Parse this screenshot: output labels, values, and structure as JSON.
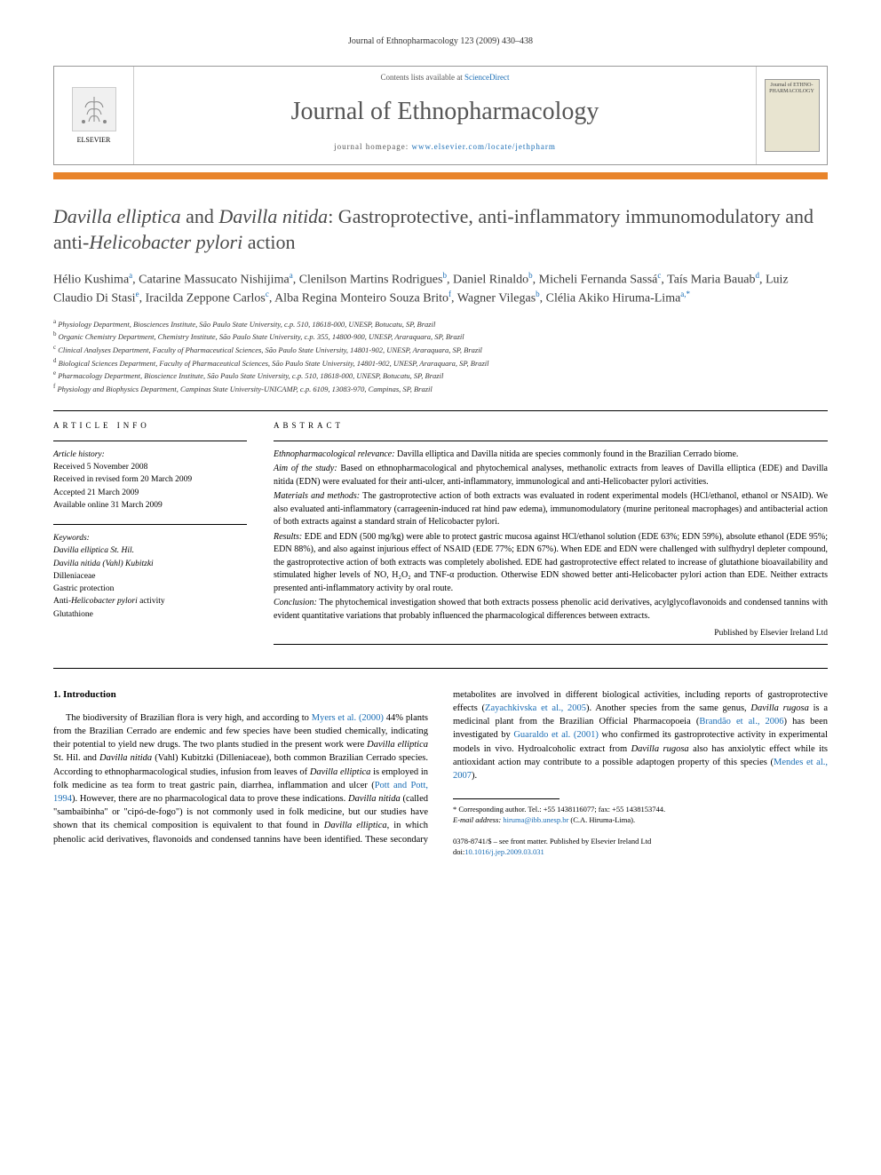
{
  "running_head": "Journal of Ethnopharmacology 123 (2009) 430–438",
  "masthead": {
    "contents_prefix": "Contents lists available at ",
    "contents_link": "ScienceDirect",
    "journal_name": "Journal of Ethnopharmacology",
    "homepage_prefix": "journal homepage: ",
    "homepage_url": "www.elsevier.com/locate/jethpharm",
    "elsevier_label": "ELSEVIER",
    "cover_text": "Journal of ETHNO-PHARMACOLOGY"
  },
  "title_parts": {
    "p1": "Davilla elliptica",
    "p2": " and ",
    "p3": "Davilla nitida",
    "p4": ": Gastroprotective, anti-inflammatory immunomodulatory and anti-",
    "p5": "Helicobacter pylori",
    "p6": " action"
  },
  "authors_html": "Hélio Kushima<sup>a</sup>, Catarine Massucato Nishijima<sup>a</sup>, Clenilson Martins Rodrigues<sup>b</sup>, Daniel Rinaldo<sup>b</sup>, Micheli Fernanda Sassá<sup>c</sup>, Taís Maria Bauab<sup>d</sup>, Luiz Claudio Di Stasi<sup>e</sup>, Iracilda Zeppone Carlos<sup>c</sup>, Alba Regina Monteiro Souza Brito<sup>f</sup>, Wagner Vilegas<sup>b</sup>, Clélia Akiko Hiruma-Lima<sup>a,*</sup>",
  "affiliations": [
    "a Physiology Department, Biosciences Institute, São Paulo State University, c.p. 510, 18618-000, UNESP, Botucatu, SP, Brazil",
    "b Organic Chemistry Department, Chemistry Institute, São Paulo State University, c.p. 355, 14800-900, UNESP, Araraquara, SP, Brazil",
    "c Clinical Analyses Department, Faculty of Pharmaceutical Sciences, São Paulo State University, 14801-902, UNESP, Araraquara, SP, Brazil",
    "d Biological Sciences Department, Faculty of Pharmaceutical Sciences, São Paulo State University, 14801-902, UNESP, Araraquara, SP, Brazil",
    "e Pharmacology Department, Bioscience Institute, São Paulo State University, c.p. 510, 18618-000, UNESP, Botucatu, SP, Brazil",
    "f Physiology and Biophysics Department, Campinas State University-UNICAMP, c.p. 6109, 13083-970, Campinas, SP, Brazil"
  ],
  "article_info": {
    "heading": "ARTICLE INFO",
    "history_label": "Article history:",
    "history": [
      "Received 5 November 2008",
      "Received in revised form 20 March 2009",
      "Accepted 21 March 2009",
      "Available online 31 March 2009"
    ],
    "keywords_label": "Keywords:",
    "keywords": [
      {
        "text": "Davilla elliptica St. Hil.",
        "ital": true
      },
      {
        "text": "Davilla nitida (Vahl) Kubitzki",
        "ital": true
      },
      {
        "text": "Dilleniaceae",
        "ital": false
      },
      {
        "text": "Gastric protection",
        "ital": false
      },
      {
        "text": "Anti-Helicobacter pylori activity",
        "ital": false,
        "mixed": true
      },
      {
        "text": "Glutathione",
        "ital": false
      }
    ]
  },
  "abstract": {
    "heading": "ABSTRACT",
    "sections": [
      {
        "label": "Ethnopharmacological relevance:",
        "text": " Davilla elliptica and Davilla nitida are species commonly found in the Brazilian Cerrado biome."
      },
      {
        "label": "Aim of the study:",
        "text": " Based on ethnopharmacological and phytochemical analyses, methanolic extracts from leaves of Davilla elliptica (EDE) and Davilla nitida (EDN) were evaluated for their anti-ulcer, anti-inflammatory, immunological and anti-Helicobacter pylori activities."
      },
      {
        "label": "Materials and methods:",
        "text": " The gastroprotective action of both extracts was evaluated in rodent experimental models (HCl/ethanol, ethanol or NSAID). We also evaluated anti-inflammatory (carrageenin-induced rat hind paw edema), immunomodulatory (murine peritoneal macrophages) and antibacterial action of both extracts against a standard strain of Helicobacter pylori."
      },
      {
        "label": "Results:",
        "text": " EDE and EDN (500 mg/kg) were able to protect gastric mucosa against HCl/ethanol solution (EDE 63%; EDN 59%), absolute ethanol (EDE 95%; EDN 88%), and also against injurious effect of NSAID (EDE 77%; EDN 67%). When EDE and EDN were challenged with sulfhydryl depleter compound, the gastroprotective action of both extracts was completely abolished. EDE had gastroprotective effect related to increase of glutathione bioavailability and stimulated higher levels of NO, H₂O₂ and TNF-α production. Otherwise EDN showed better anti-Helicobacter pylori action than EDE. Neither extracts presented anti-inflammatory activity by oral route."
      },
      {
        "label": "Conclusion:",
        "text": " The phytochemical investigation showed that both extracts possess phenolic acid derivatives, acylglycoflavonoids and condensed tannins with evident quantitative variations that probably influenced the pharmacological differences between extracts."
      }
    ],
    "publisher_line": "Published by Elsevier Ireland Ltd"
  },
  "intro": {
    "heading": "1. Introduction",
    "para1_pre": "The biodiversity of Brazilian flora is very high, and according to ",
    "ref1": "Myers et al. (2000)",
    "para1_mid": " 44% plants from the Brazilian Cerrado are endemic and few species have been studied chemically, indicating their potential to yield new drugs. The two plants studied in the present work were ",
    "sp1": "Davilla elliptica",
    "para1_mid2": " St. Hil. and ",
    "sp2": "Davilla nitida",
    "para1_mid3": " (Vahl) Kubitzki (Dilleniaceae), both common Brazilian Cerrado species. According to ethnopharmacological studies, infusion from leaves of ",
    "sp3": "Davilla elliptica",
    "para1_mid4": " is employed in folk medicine as tea form to treat gastric pain, diarrhea, inflammation and ulcer (",
    "ref2": "Pott and Pott, 1994",
    "para1_end": ").",
    "para2_pre": "However, there are no pharmacological data to prove these indications. ",
    "sp4": "Davilla nitida",
    "para2_mid": " (called \"sambaibinha\" or \"cipó-de-fogo\") is not commonly used in folk medicine, but our studies have shown that its chemical composition is equivalent to that found in ",
    "sp5": "Davilla elliptica",
    "para2_mid2": ", in which phenolic acid derivatives, flavonoids and condensed tannins have been identified. These secondary metabolites are involved in different biological activities, including reports of gastroprotective effects (",
    "ref3": "Zayachkivska et al., 2005",
    "para2_mid3": "). Another species from the same genus, ",
    "sp6": "Davilla rugosa",
    "para2_mid4": " is a medicinal plant from the Brazilian Official Pharmacopoeia (",
    "ref4": "Brandão et al., 2006",
    "para2_mid5": ") has been investigated by ",
    "ref5": "Guaraldo et al. (2001)",
    "para2_mid6": " who confirmed its gastroprotective activity in experimental models in vivo. Hydroalcoholic extract from ",
    "sp7": "Davilla rugosa",
    "para2_mid7": " also has anxiolytic effect while its antioxidant action may contribute to a possible adaptogen property of this species (",
    "ref6": "Mendes et al., 2007",
    "para2_end": ")."
  },
  "footnotes": {
    "corr": "* Corresponding author. Tel.: +55 1438116077; fax: +55 1438153744.",
    "email_label": "E-mail address:",
    "email": "hiruma@ibb.unesp.br",
    "email_suffix": " (C.A. Hiruma-Lima)."
  },
  "copyright": {
    "line1": "0378-8741/$ – see front matter. Published by Elsevier Ireland Ltd",
    "doi_prefix": "doi:",
    "doi": "10.1016/j.jep.2009.03.031"
  },
  "colors": {
    "accent_orange": "#e8842b",
    "link_blue": "#1a6db5",
    "title_gray": "#4a4a4a"
  }
}
